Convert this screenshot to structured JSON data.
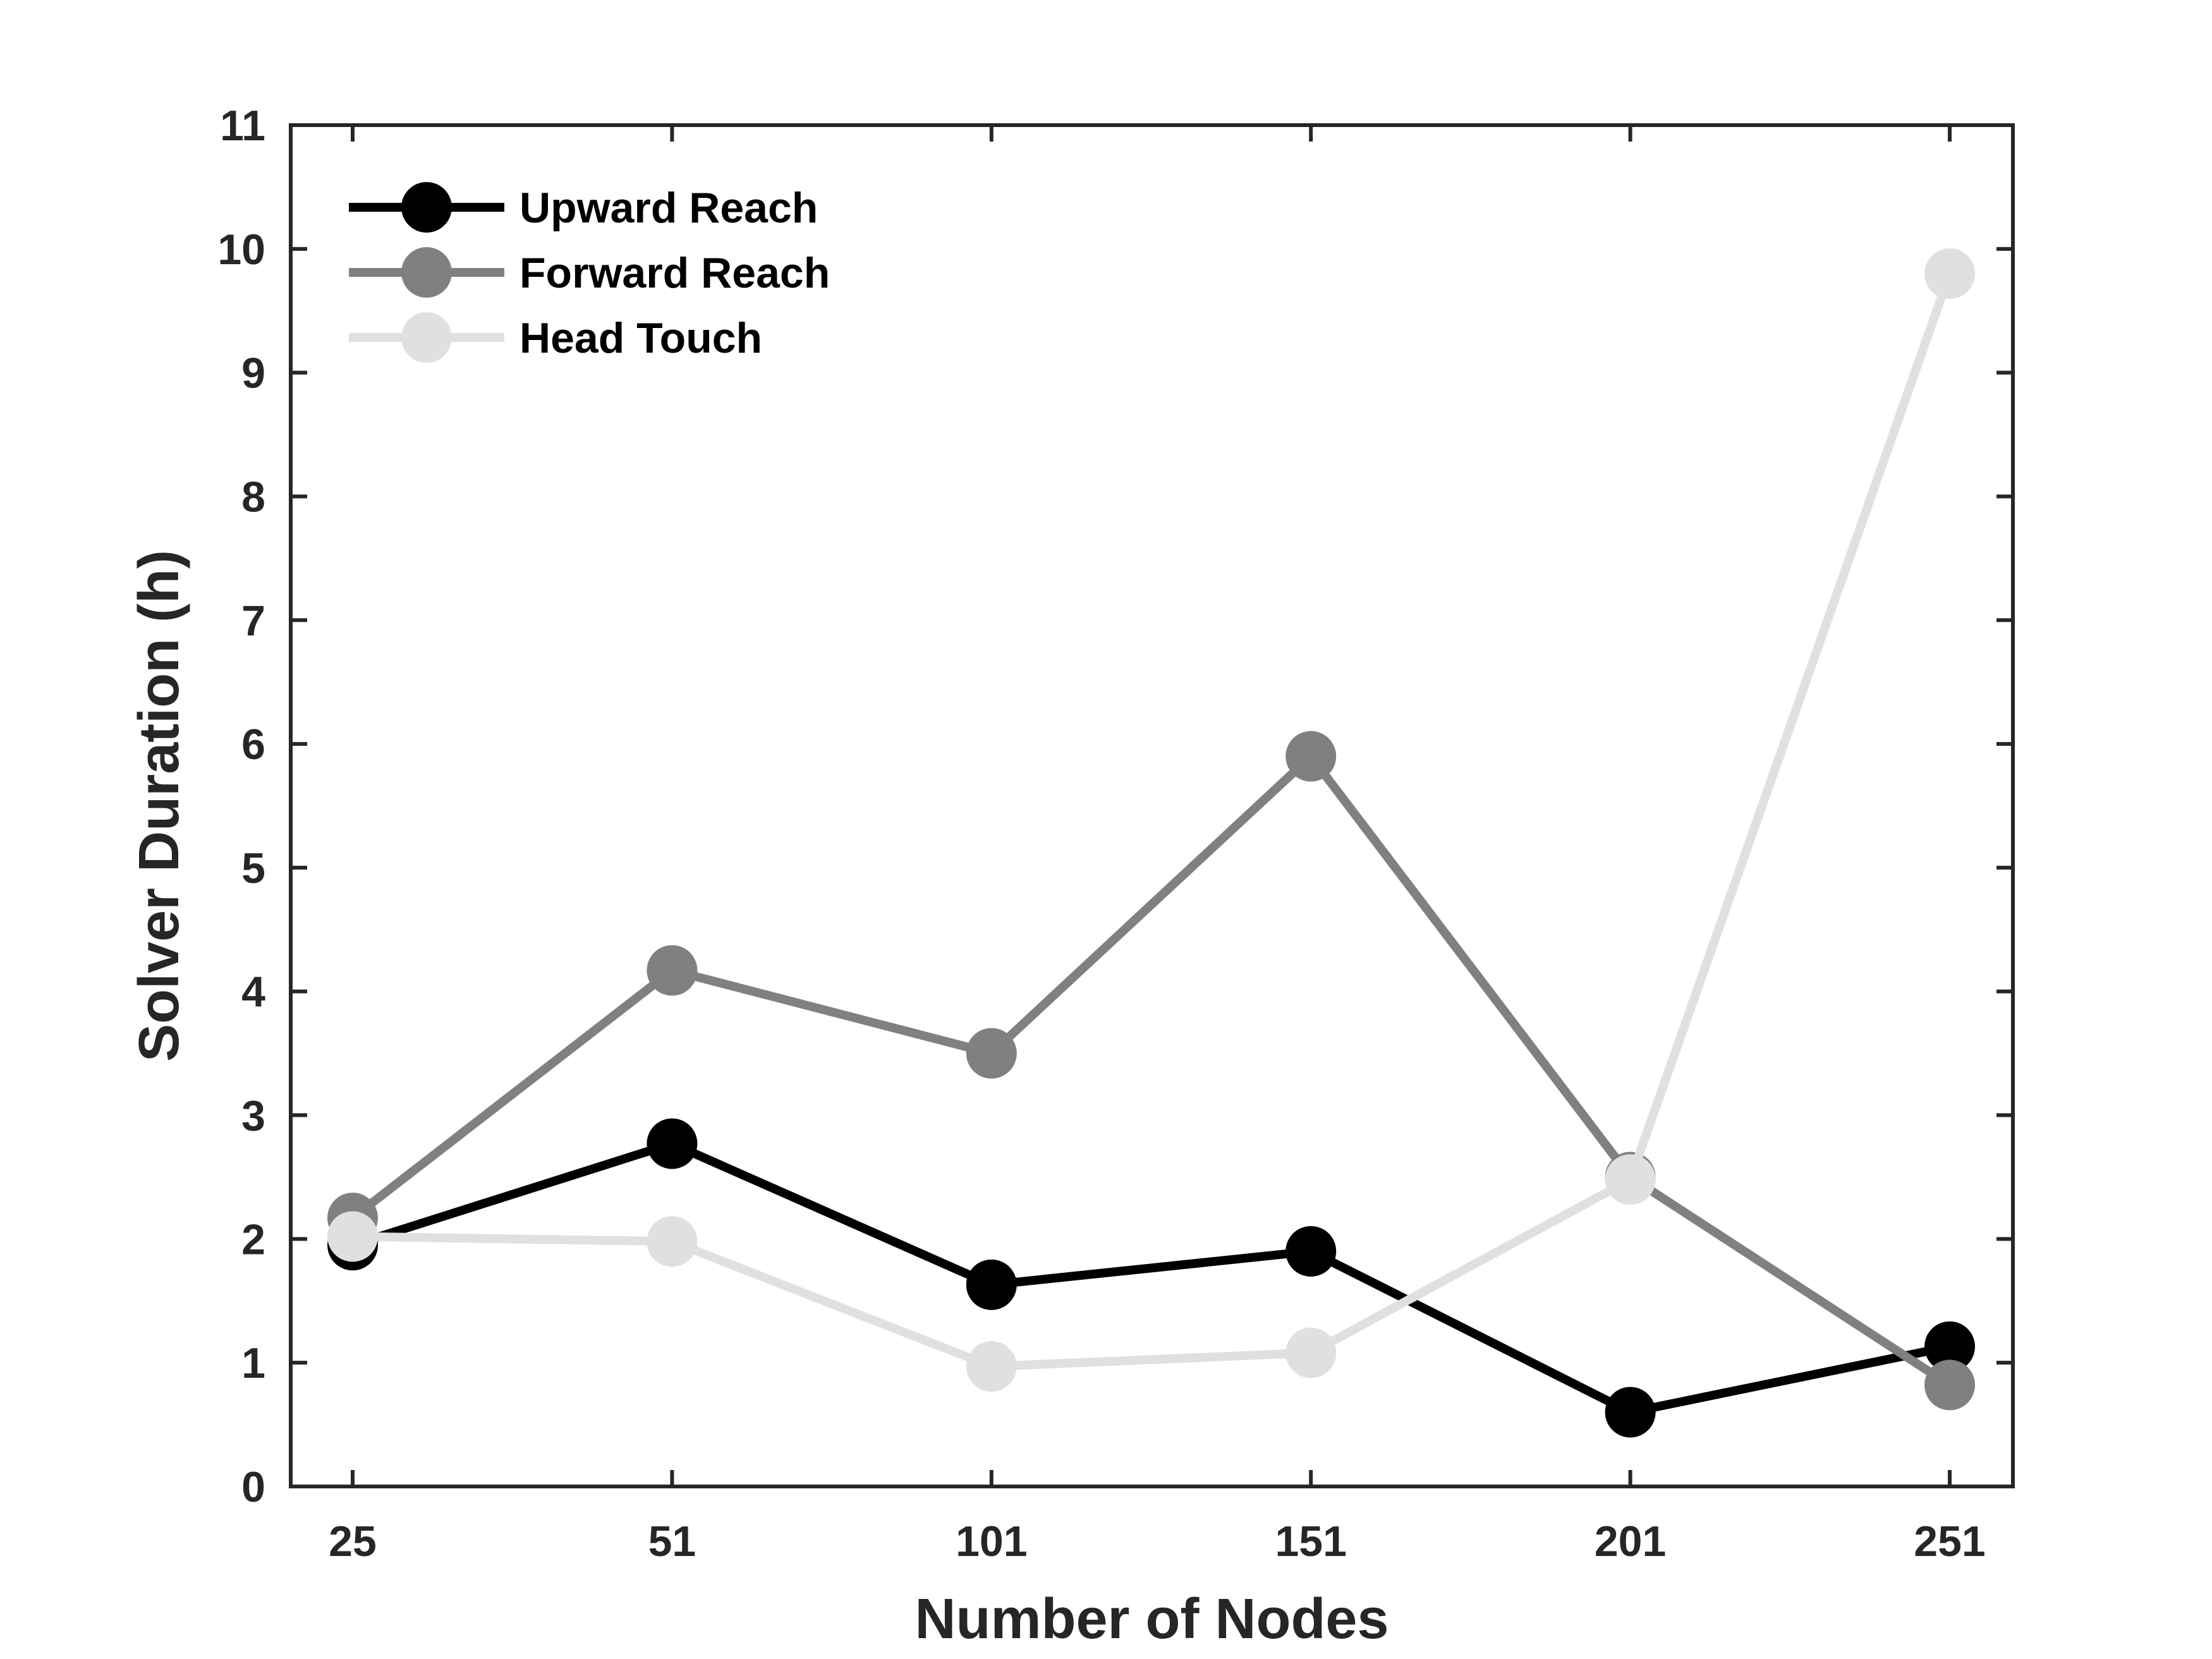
{
  "chart_data": {
    "type": "line",
    "title": "",
    "xlabel": "Number of Nodes",
    "ylabel": "Solver Duration (h)",
    "categories": [
      "25",
      "51",
      "101",
      "151",
      "201",
      "251"
    ],
    "y_ticks": [
      "0",
      "1",
      "2",
      "3",
      "4",
      "5",
      "6",
      "7",
      "8",
      "9",
      "10",
      "11"
    ],
    "ylim": [
      0,
      11
    ],
    "grid": false,
    "legend_position": "top-left",
    "series": [
      {
        "name": "Upward Reach",
        "color": "#000000",
        "values": [
          1.95,
          2.77,
          1.63,
          1.9,
          0.6,
          1.13
        ]
      },
      {
        "name": "Forward Reach",
        "color": "#808080",
        "values": [
          2.17,
          4.17,
          3.5,
          5.9,
          2.5,
          0.82
        ]
      },
      {
        "name": "Head Touch",
        "color": "#e0e0e0",
        "values": [
          2.02,
          1.98,
          0.97,
          1.08,
          2.48,
          9.8
        ]
      }
    ]
  }
}
